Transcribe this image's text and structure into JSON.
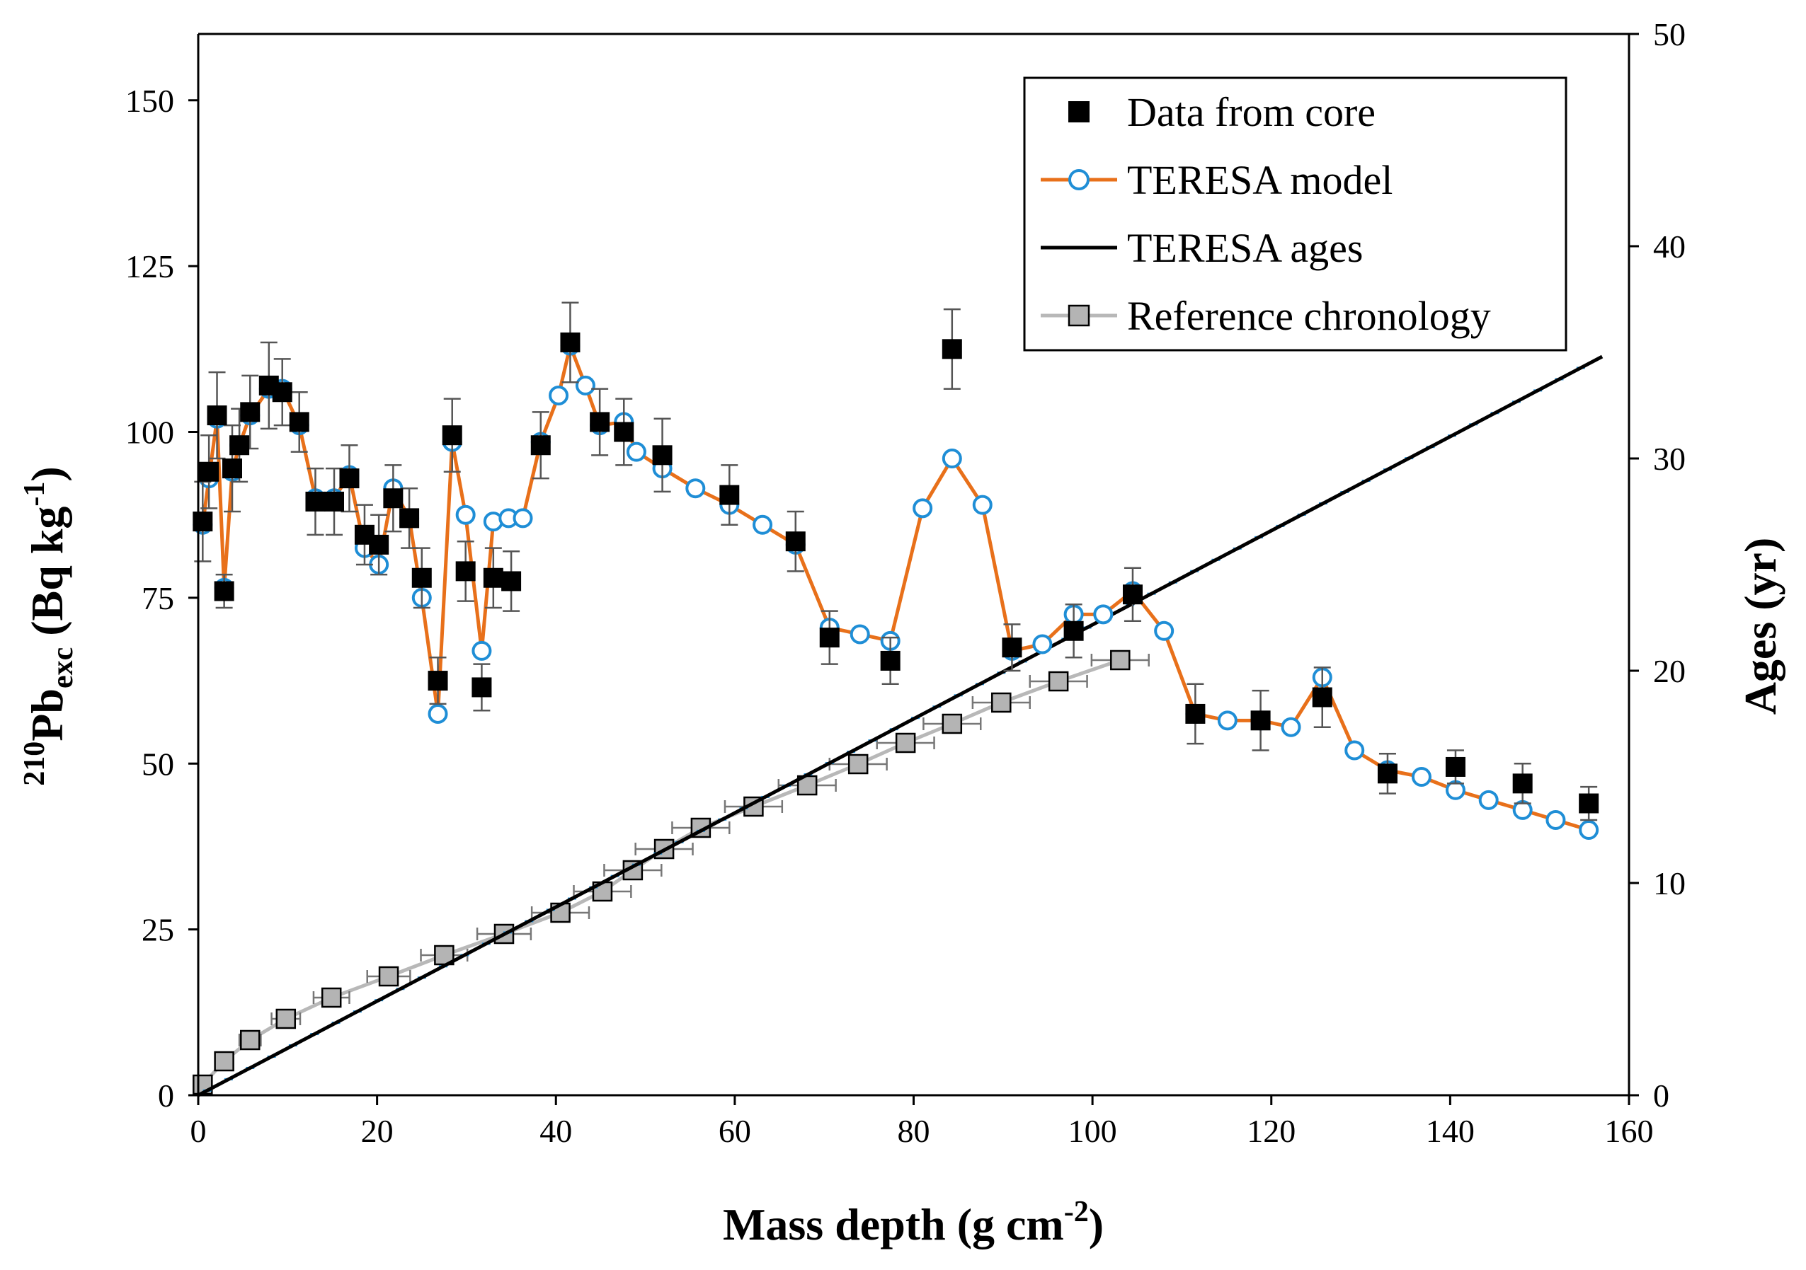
{
  "chart_data": {
    "type": "scatter",
    "xlabel": "Mass depth (g cm-2)",
    "xlabel_main": "Mass depth (g cm",
    "xlabel_sup": "-2",
    "xlabel_end": ")",
    "ylabel_left_sup": "210",
    "ylabel_left_main": "Pb",
    "ylabel_left_sub": "exc",
    "ylabel_left_unit_open": " (Bq kg",
    "ylabel_left_unit_sup": "-1",
    "ylabel_left_unit_close": ")",
    "ylabel_right": "Ages (yr)",
    "xlim": [
      0,
      160
    ],
    "ylim_left": [
      0,
      160
    ],
    "ylim_right": [
      0,
      50
    ],
    "x_ticks": [
      0,
      20,
      40,
      60,
      80,
      100,
      120,
      140,
      160
    ],
    "y_left_ticks": [
      0,
      25,
      50,
      75,
      100,
      125,
      150
    ],
    "y_right_ticks": [
      0,
      10,
      20,
      30,
      40,
      50
    ],
    "legend": [
      {
        "label": "Data from core",
        "marker": "square-filled",
        "color": "#000000"
      },
      {
        "label": "TERESA model",
        "marker": "circle-open",
        "color": "#E8701A",
        "marker_color": "#1F8ED6"
      },
      {
        "label": "TERESA ages",
        "marker": "line",
        "color": "#000000"
      },
      {
        "label": "Reference chronology",
        "marker": "square-gray",
        "color": "#B8B8B8"
      }
    ],
    "colors": {
      "core": "#000000",
      "model_line": "#E8701A",
      "model_marker": "#1F8ED6",
      "ages_line": "#000000",
      "ages_err": "#1F8ED6",
      "ref_line": "#B8B8B8",
      "ref_marker": "#B4B4B4",
      "errorbar": "#555555"
    },
    "series": [
      {
        "name": "Data from core",
        "axis": "left",
        "x": [
          0.5,
          1.2,
          2.1,
          2.9,
          3.8,
          4.6,
          5.8,
          7.9,
          9.4,
          11.3,
          13.1,
          15.2,
          16.9,
          18.6,
          20.2,
          21.8,
          23.6,
          25.0,
          26.8,
          28.4,
          29.9,
          31.7,
          33.0,
          35.0,
          38.3,
          41.6,
          44.9,
          47.6,
          51.9,
          59.4,
          66.8,
          70.6,
          77.4,
          84.3,
          91.0,
          97.9,
          104.5,
          111.5,
          118.8,
          125.7,
          133.0,
          140.6,
          148.1,
          155.5
        ],
        "y": [
          86.5,
          94.0,
          102.5,
          76.0,
          94.5,
          98.0,
          103.0,
          107.0,
          106.0,
          101.5,
          89.5,
          89.5,
          93.0,
          84.5,
          83.0,
          90.0,
          87.0,
          78.0,
          62.5,
          99.5,
          79.0,
          61.5,
          78.0,
          77.5,
          98.0,
          113.5,
          101.5,
          100.0,
          96.5,
          90.5,
          83.5,
          69.0,
          65.5,
          112.5,
          67.5,
          70.0,
          75.5,
          57.5,
          56.5,
          60.0,
          48.5,
          49.5,
          47.0,
          44.0
        ],
        "err": [
          6.0,
          5.5,
          6.5,
          2.5,
          6.5,
          5.5,
          5.5,
          6.5,
          5.0,
          4.5,
          5.0,
          5.0,
          5.0,
          4.5,
          4.5,
          5.0,
          4.5,
          4.5,
          3.5,
          5.5,
          4.5,
          3.5,
          4.5,
          4.5,
          5.0,
          6.0,
          5.0,
          5.0,
          5.5,
          4.5,
          4.5,
          4.0,
          3.5,
          6.0,
          3.5,
          4.0,
          4.0,
          4.5,
          4.5,
          4.5,
          3.0,
          2.5,
          3.0,
          2.5
        ]
      },
      {
        "name": "TERESA model",
        "axis": "left",
        "x": [
          0.5,
          1.2,
          2.1,
          2.9,
          3.8,
          4.6,
          5.8,
          7.9,
          9.4,
          11.3,
          13.1,
          15.2,
          16.9,
          18.6,
          20.2,
          21.8,
          23.6,
          25.0,
          26.8,
          28.4,
          29.9,
          31.7,
          33.0,
          34.7,
          36.3,
          38.3,
          40.3,
          41.6,
          43.3,
          44.9,
          47.6,
          49.0,
          51.9,
          55.6,
          59.4,
          63.1,
          66.8,
          70.6,
          74.0,
          77.4,
          81.0,
          84.3,
          87.7,
          91.0,
          94.4,
          97.9,
          101.2,
          104.5,
          108.0,
          111.5,
          115.1,
          118.8,
          122.2,
          125.7,
          129.3,
          133.0,
          136.8,
          140.6,
          144.3,
          148.1,
          151.8,
          155.5
        ],
        "y": [
          86.0,
          93.0,
          102.0,
          76.5,
          94.0,
          98.0,
          102.5,
          106.5,
          106.5,
          101.0,
          90.0,
          90.0,
          93.5,
          82.5,
          80.0,
          91.5,
          87.0,
          75.0,
          57.5,
          98.5,
          87.5,
          67.0,
          86.5,
          87.0,
          87.0,
          98.5,
          105.5,
          113.0,
          107.0,
          101.0,
          101.5,
          97.0,
          94.5,
          91.5,
          89.0,
          86.0,
          83.0,
          70.5,
          69.5,
          68.5,
          88.5,
          96.0,
          89.0,
          67.0,
          68.0,
          72.5,
          72.5,
          76.0,
          70.0,
          57.5,
          56.5,
          56.5,
          55.5,
          63.0,
          52.0,
          49.0,
          48.0,
          46.0,
          44.5,
          43.0,
          41.5,
          40.0
        ]
      },
      {
        "name": "TERESA ages",
        "axis": "right",
        "x": [
          0,
          157
        ],
        "y": [
          0,
          34.8
        ]
      },
      {
        "name": "Reference chronology",
        "axis": "right",
        "x": [
          0.5,
          2.9,
          5.8,
          9.8,
          14.9,
          21.3,
          27.5,
          34.2,
          40.5,
          45.2,
          48.6,
          52.1,
          56.2,
          62.1,
          68.1,
          73.8,
          79.1,
          84.3,
          89.8,
          96.2,
          103.1
        ],
        "y": [
          0.5,
          1.6,
          2.6,
          3.6,
          4.6,
          5.6,
          6.6,
          7.6,
          8.6,
          9.6,
          10.6,
          11.6,
          12.6,
          13.6,
          14.6,
          15.6,
          16.6,
          17.5,
          18.5,
          19.5,
          20.5
        ],
        "xerr": [
          0.6,
          0.8,
          1.2,
          1.6,
          2.0,
          2.4,
          2.6,
          3.0,
          3.2,
          3.2,
          3.2,
          3.2,
          3.2,
          3.2,
          3.2,
          3.2,
          3.2,
          3.2,
          3.2,
          3.2,
          3.2
        ]
      }
    ]
  }
}
